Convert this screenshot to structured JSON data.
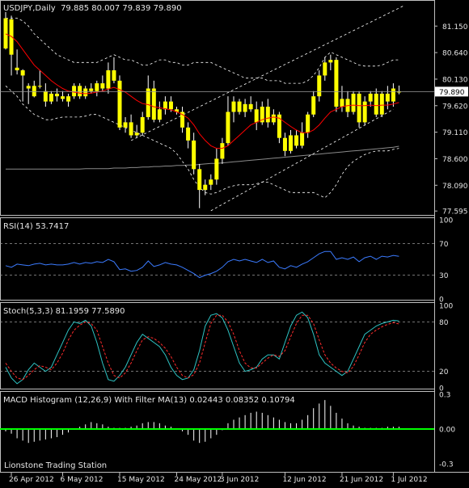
{
  "colors": {
    "background": "#000000",
    "border": "#bfbfbf",
    "grid": "#9a9a9a",
    "text": "#e6e6e6",
    "candle": "#ffff00",
    "wick": "#ffffff",
    "ma_red": "#ff0000",
    "bands": "#ffffff",
    "ma_long": "#8a8a8a",
    "rsi": "#3b7bff",
    "stoch_main": "#2ec4c4",
    "stoch_signal": "#ff2b2b",
    "macd_hist": "#ffffff",
    "macd_zero": "#00ff00",
    "price_box_bg": "#ffffff",
    "price_box_text": "#000000"
  },
  "footer_text": "Lionstone Trading Station",
  "chart_data": [
    {
      "type": "candlestick",
      "title": "USDJPY,Daily  79.885 80.007 79.839 79.890",
      "y_ticks": [
        "81.150",
        "80.640",
        "80.130",
        "79.620",
        "79.110",
        "78.600",
        "78.090",
        "77.595"
      ],
      "y_tick_values": [
        81.15,
        80.64,
        80.13,
        79.62,
        79.11,
        78.6,
        78.09,
        77.595
      ],
      "ylim": [
        77.52,
        81.62
      ],
      "current_price": "79.890",
      "current_price_value": 79.89,
      "x_ticks": [
        "26 Apr 2012",
        "6 May 2012",
        "15 May 2012",
        "24 May 2012",
        "3 Jun 2012",
        "12 Jun 2012",
        "21 Jun 2012",
        "1 Jul 2012"
      ],
      "x_tick_index": [
        1,
        10,
        20,
        30,
        38,
        49,
        59,
        68
      ],
      "ohlc": [
        [
          81.3,
          81.42,
          80.7,
          80.72
        ],
        [
          80.6,
          81.35,
          80.2,
          81.28
        ],
        [
          80.3,
          80.7,
          80.22,
          80.35
        ],
        [
          80.2,
          80.32,
          79.7,
          80.3
        ],
        [
          80.0,
          80.05,
          79.65,
          79.95
        ],
        [
          79.8,
          80.1,
          79.78,
          80.0
        ],
        [
          80.0,
          80.3,
          79.95,
          80.0
        ],
        [
          79.9,
          80.05,
          79.6,
          79.7
        ],
        [
          79.7,
          79.9,
          79.65,
          79.85
        ],
        [
          79.85,
          79.95,
          79.7,
          79.8
        ],
        [
          79.8,
          79.9,
          79.7,
          79.75
        ],
        [
          79.7,
          79.85,
          79.6,
          79.8
        ],
        [
          79.8,
          80.05,
          79.75,
          80.0
        ],
        [
          80.0,
          80.05,
          79.75,
          79.8
        ],
        [
          79.8,
          80.0,
          79.75,
          79.95
        ],
        [
          79.95,
          80.05,
          79.85,
          79.9
        ],
        [
          79.9,
          80.1,
          79.8,
          80.05
        ],
        [
          80.05,
          80.2,
          79.9,
          79.95
        ],
        [
          79.95,
          80.45,
          79.85,
          80.3
        ],
        [
          80.3,
          80.55,
          80.05,
          80.1
        ],
        [
          80.1,
          80.2,
          79.15,
          79.2
        ],
        [
          79.2,
          79.4,
          79.1,
          79.3
        ],
        [
          79.3,
          79.45,
          79.0,
          79.05
        ],
        [
          79.05,
          79.25,
          79.0,
          79.1
        ],
        [
          79.1,
          79.5,
          79.05,
          79.4
        ],
        [
          79.4,
          80.2,
          79.35,
          79.95
        ],
        [
          79.95,
          80.1,
          79.3,
          79.35
        ],
        [
          79.35,
          79.7,
          79.3,
          79.55
        ],
        [
          79.55,
          79.8,
          79.45,
          79.7
        ],
        [
          79.7,
          79.8,
          79.5,
          79.55
        ],
        [
          79.55,
          79.6,
          79.45,
          79.5
        ],
        [
          79.5,
          79.6,
          79.1,
          79.2
        ],
        [
          79.2,
          79.3,
          78.8,
          78.95
        ],
        [
          78.95,
          79.1,
          78.3,
          78.4
        ],
        [
          78.4,
          78.5,
          77.65,
          78.0
        ],
        [
          78.0,
          78.2,
          77.9,
          78.1
        ],
        [
          78.1,
          78.3,
          78.0,
          78.2
        ],
        [
          78.2,
          78.8,
          78.1,
          78.6
        ],
        [
          78.6,
          79.0,
          78.5,
          78.9
        ],
        [
          78.9,
          79.8,
          78.85,
          79.5
        ],
        [
          79.5,
          79.8,
          79.3,
          79.7
        ],
        [
          79.7,
          79.75,
          79.45,
          79.5
        ],
        [
          79.5,
          79.75,
          79.4,
          79.65
        ],
        [
          79.65,
          79.8,
          79.5,
          79.55
        ],
        [
          79.55,
          79.7,
          79.15,
          79.3
        ],
        [
          79.3,
          79.7,
          79.25,
          79.6
        ],
        [
          79.6,
          79.75,
          79.2,
          79.3
        ],
        [
          79.3,
          79.55,
          79.25,
          79.45
        ],
        [
          79.45,
          79.5,
          78.9,
          79.0
        ],
        [
          79.0,
          79.1,
          78.65,
          78.75
        ],
        [
          78.75,
          79.15,
          78.7,
          79.05
        ],
        [
          79.05,
          79.15,
          78.8,
          78.85
        ],
        [
          78.85,
          79.3,
          78.8,
          79.1
        ],
        [
          79.1,
          79.5,
          79.0,
          79.45
        ],
        [
          79.45,
          79.9,
          79.4,
          79.8
        ],
        [
          79.8,
          80.3,
          79.7,
          80.2
        ],
        [
          80.2,
          80.55,
          80.1,
          80.45
        ],
        [
          80.45,
          80.6,
          80.3,
          80.5
        ],
        [
          80.5,
          80.55,
          79.5,
          79.6
        ],
        [
          79.6,
          80.0,
          79.5,
          79.75
        ],
        [
          79.75,
          79.9,
          79.4,
          79.5
        ],
        [
          79.5,
          79.9,
          79.45,
          79.85
        ],
        [
          79.85,
          79.9,
          79.2,
          79.3
        ],
        [
          79.3,
          79.8,
          79.25,
          79.7
        ],
        [
          79.7,
          79.9,
          79.6,
          79.85
        ],
        [
          79.85,
          79.95,
          79.4,
          79.45
        ],
        [
          79.45,
          79.9,
          79.4,
          79.85
        ],
        [
          79.85,
          80.0,
          79.55,
          79.7
        ],
        [
          79.7,
          80.05,
          79.6,
          79.95
        ],
        [
          79.885,
          80.007,
          79.839,
          79.89
        ]
      ],
      "ma_red": [
        81.0,
        80.95,
        80.85,
        80.7,
        80.55,
        80.4,
        80.3,
        80.2,
        80.1,
        80.02,
        79.95,
        79.9,
        79.88,
        79.86,
        79.85,
        79.86,
        79.88,
        79.9,
        79.94,
        79.97,
        79.93,
        79.88,
        79.8,
        79.72,
        79.66,
        79.64,
        79.6,
        79.58,
        79.56,
        79.54,
        79.5,
        79.45,
        79.38,
        79.25,
        79.08,
        78.95,
        78.85,
        78.8,
        78.8,
        78.85,
        78.95,
        79.05,
        79.15,
        79.25,
        79.3,
        79.35,
        79.38,
        79.4,
        79.38,
        79.3,
        79.22,
        79.15,
        79.1,
        79.1,
        79.15,
        79.25,
        79.38,
        79.5,
        79.55,
        79.6,
        79.62,
        79.63,
        79.62,
        79.62,
        79.63,
        79.62,
        79.63,
        79.63,
        79.65,
        79.68
      ],
      "upper_band": [
        81.3,
        81.3,
        81.3,
        81.25,
        81.15,
        81.0,
        80.9,
        80.8,
        80.7,
        80.6,
        80.55,
        80.5,
        80.45,
        80.45,
        80.45,
        80.45,
        80.45,
        80.5,
        80.55,
        80.6,
        80.55,
        80.5,
        80.5,
        80.45,
        80.4,
        80.4,
        80.45,
        80.5,
        80.5,
        80.45,
        80.45,
        80.4,
        80.4,
        80.45,
        80.45,
        80.45,
        80.45,
        80.4,
        80.35,
        80.3,
        80.25,
        80.2,
        80.15,
        80.15,
        80.15,
        80.15,
        80.1,
        80.1,
        80.1,
        80.05,
        80.05,
        80.05,
        80.05,
        80.1,
        80.2,
        80.35,
        80.55,
        80.65,
        80.6,
        80.55,
        80.5,
        80.45,
        80.4,
        80.38,
        80.38,
        80.38,
        80.4,
        80.45,
        80.5,
        80.5
      ],
      "lower_band": [
        80.0,
        79.9,
        79.8,
        79.65,
        79.55,
        79.45,
        79.4,
        79.35,
        79.35,
        79.38,
        79.4,
        79.4,
        79.4,
        79.4,
        79.42,
        79.45,
        79.45,
        79.4,
        79.35,
        79.3,
        79.25,
        79.2,
        79.15,
        79.1,
        79.05,
        79.0,
        78.95,
        78.9,
        78.85,
        78.8,
        78.7,
        78.55,
        78.4,
        78.2,
        78.05,
        77.95,
        77.92,
        77.95,
        78.0,
        78.05,
        78.08,
        78.1,
        78.1,
        78.1,
        78.12,
        78.15,
        78.15,
        78.1,
        78.05,
        78.0,
        77.95,
        77.95,
        77.95,
        77.95,
        77.95,
        77.9,
        77.85,
        77.95,
        78.1,
        78.3,
        78.45,
        78.55,
        78.62,
        78.68,
        78.72,
        78.75,
        78.75,
        78.75,
        78.78,
        78.8
      ],
      "ma_long": [
        78.4,
        78.4,
        78.4,
        78.4,
        78.4,
        78.4,
        78.4,
        78.4,
        78.4,
        78.4,
        78.4,
        78.4,
        78.4,
        78.4,
        78.41,
        78.41,
        78.41,
        78.41,
        78.41,
        78.42,
        78.42,
        78.42,
        78.43,
        78.43,
        78.44,
        78.44,
        78.45,
        78.45,
        78.46,
        78.46,
        78.47,
        78.47,
        78.48,
        78.48,
        78.49,
        78.5,
        78.51,
        78.51,
        78.52,
        78.53,
        78.54,
        78.55,
        78.56,
        78.57,
        78.58,
        78.59,
        78.6,
        78.61,
        78.62,
        78.63,
        78.64,
        78.65,
        78.66,
        78.67,
        78.68,
        78.69,
        78.7,
        78.71,
        78.72,
        78.73,
        78.74,
        78.75,
        78.76,
        78.77,
        78.78,
        78.79,
        78.8,
        78.81,
        78.82,
        78.84
      ],
      "channel_upper": [
        [
          22,
          78.95
        ],
        [
          70,
          81.55
        ]
      ],
      "channel_lower": [
        [
          36,
          77.6
        ],
        [
          68,
          79.55
        ]
      ]
    },
    {
      "type": "line",
      "title": "RSI(14) 53.7417",
      "y_ticks": [
        "100",
        "70",
        "30",
        "0"
      ],
      "y_tick_values": [
        100,
        70,
        30,
        0
      ],
      "levels": [
        70,
        30
      ],
      "ylim": [
        0,
        100
      ],
      "values": [
        42,
        40,
        44,
        43,
        42,
        44,
        45,
        43,
        44,
        43,
        43,
        44,
        46,
        44,
        46,
        45,
        47,
        46,
        50,
        47,
        37,
        38,
        35,
        36,
        40,
        48,
        41,
        43,
        46,
        44,
        43,
        40,
        36,
        32,
        27,
        30,
        32,
        35,
        40,
        47,
        50,
        48,
        50,
        48,
        46,
        50,
        46,
        48,
        40,
        38,
        42,
        40,
        44,
        47,
        52,
        57,
        60,
        60,
        50,
        52,
        50,
        53,
        47,
        52,
        54,
        50,
        54,
        53,
        55,
        53.74
      ]
    },
    {
      "type": "line",
      "title": "Stoch(5,3,3) 81.1959 77.5890",
      "y_ticks": [
        "100",
        "80",
        "20",
        "0"
      ],
      "y_tick_values": [
        100,
        80,
        20,
        0
      ],
      "levels": [
        80,
        20
      ],
      "ylim": [
        0,
        100
      ],
      "main": [
        25,
        12,
        5,
        10,
        22,
        30,
        25,
        20,
        25,
        40,
        55,
        70,
        80,
        78,
        82,
        75,
        55,
        30,
        10,
        8,
        15,
        25,
        40,
        55,
        65,
        60,
        55,
        50,
        40,
        25,
        15,
        10,
        12,
        22,
        45,
        75,
        88,
        90,
        85,
        70,
        50,
        30,
        20,
        22,
        25,
        35,
        40,
        40,
        35,
        55,
        75,
        88,
        92,
        85,
        65,
        40,
        30,
        25,
        20,
        15,
        20,
        35,
        50,
        65,
        70,
        75,
        78,
        80,
        82,
        81.2
      ],
      "signal": [
        30,
        20,
        12,
        10,
        15,
        22,
        27,
        25,
        22,
        30,
        42,
        58,
        70,
        76,
        80,
        78,
        70,
        50,
        30,
        15,
        12,
        18,
        30,
        45,
        58,
        62,
        60,
        55,
        48,
        38,
        25,
        15,
        12,
        16,
        30,
        55,
        78,
        88,
        88,
        80,
        65,
        45,
        30,
        24,
        24,
        30,
        36,
        40,
        38,
        45,
        62,
        78,
        88,
        88,
        78,
        58,
        40,
        30,
        24,
        20,
        18,
        26,
        40,
        55,
        65,
        70,
        74,
        77,
        79,
        77.59
      ]
    },
    {
      "type": "bar",
      "title": "MACD Histogram (12,26,9) With Filter MA(13) 0.02443 0.08352 0.10794",
      "y_ticks": [
        "0.3",
        "0.00",
        "-0.3"
      ],
      "y_tick_values": [
        0.3,
        0,
        -0.3
      ],
      "ylim": [
        -0.3,
        0.3
      ],
      "values": [
        -0.02,
        -0.04,
        -0.08,
        -0.1,
        -0.12,
        -0.11,
        -0.1,
        -0.09,
        -0.08,
        -0.07,
        -0.05,
        -0.03,
        0.0,
        0.02,
        0.04,
        0.06,
        0.05,
        0.04,
        0.02,
        0.01,
        0.01,
        0.01,
        0.02,
        0.03,
        0.05,
        0.06,
        0.06,
        0.05,
        0.03,
        0.02,
        0.0,
        -0.02,
        -0.05,
        -0.1,
        -0.12,
        -0.11,
        -0.08,
        -0.05,
        -0.01,
        0.05,
        0.08,
        0.1,
        0.12,
        0.14,
        0.15,
        0.14,
        0.12,
        0.1,
        0.08,
        0.06,
        0.05,
        0.05,
        0.08,
        0.12,
        0.18,
        0.22,
        0.25,
        0.2,
        0.14,
        0.09,
        0.05,
        0.03,
        0.02,
        0.01,
        0.01,
        0.01,
        0.01,
        0.02,
        0.02,
        0.02
      ]
    }
  ]
}
